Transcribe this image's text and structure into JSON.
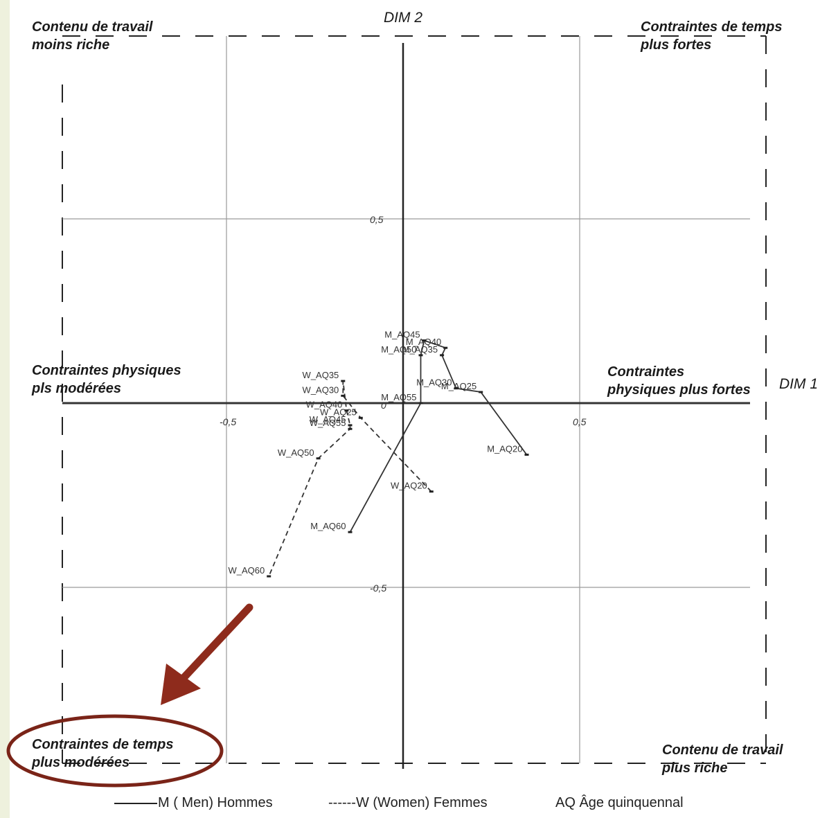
{
  "chart_data": {
    "type": "scatter",
    "xlabel": "DIM 1",
    "ylabel": "DIM 2",
    "xlim": [
      -0.95,
      0.95
    ],
    "ylim": [
      -0.98,
      1.0
    ],
    "x_ticks": [
      -0.5,
      0,
      0.5
    ],
    "y_ticks": [
      0.5,
      0,
      -0.5
    ],
    "x_tick_labels": [
      "-0,5",
      "0",
      "0,5"
    ],
    "y_tick_labels": [
      "0,5",
      "0",
      "-0,5"
    ],
    "grid": true,
    "series": [
      {
        "name": "M (Men) Hommes",
        "line_style": "solid",
        "points": [
          {
            "label": "M_AQ20",
            "x": 0.35,
            "y": -0.14
          },
          {
            "label": "M_AQ25",
            "x": 0.22,
            "y": 0.03
          },
          {
            "label": "M_AQ30",
            "x": 0.15,
            "y": 0.04
          },
          {
            "label": "M_AQ35",
            "x": 0.11,
            "y": 0.13
          },
          {
            "label": "M_AQ40",
            "x": 0.12,
            "y": 0.15
          },
          {
            "label": "M_AQ45",
            "x": 0.06,
            "y": 0.17
          },
          {
            "label": "M_AQ50",
            "x": 0.05,
            "y": 0.13
          },
          {
            "label": "M_AQ55",
            "x": 0.05,
            "y": 0.0
          },
          {
            "label": "M_AQ60",
            "x": -0.15,
            "y": -0.35
          }
        ]
      },
      {
        "name": "W (Women) Femmes",
        "line_style": "dashed",
        "points": [
          {
            "label": "W_AQ20",
            "x": 0.08,
            "y": -0.24
          },
          {
            "label": "W_AQ25",
            "x": -0.12,
            "y": -0.04
          },
          {
            "label": "W_AQ30",
            "x": -0.17,
            "y": 0.02
          },
          {
            "label": "W_AQ35",
            "x": -0.17,
            "y": 0.06
          },
          {
            "label": "W_AQ40",
            "x": -0.16,
            "y": -0.02
          },
          {
            "label": "W_AQ45",
            "x": -0.15,
            "y": -0.06
          },
          {
            "label": "W_AQ50",
            "x": -0.24,
            "y": -0.15
          },
          {
            "label": "W_AQ55",
            "x": -0.15,
            "y": -0.07
          },
          {
            "label": "W_AQ60",
            "x": -0.38,
            "y": -0.47
          }
        ]
      }
    ],
    "path_order": {
      "M (Men) Hommes": [
        "M_AQ20",
        "M_AQ25",
        "M_AQ30",
        "M_AQ35",
        "M_AQ40",
        "M_AQ45",
        "M_AQ50",
        "M_AQ55",
        "M_AQ60"
      ],
      "W (Women) Femmes": [
        "W_AQ20",
        "W_AQ25",
        "W_AQ30",
        "W_AQ35",
        "W_AQ40",
        "W_AQ45",
        "W_AQ55",
        "W_AQ50",
        "W_AQ60"
      ]
    },
    "annotations": {
      "top_left": [
        "Contenu de travail",
        "moins riche"
      ],
      "top_right": [
        "Contraintes de temps",
        "plus fortes"
      ],
      "left": [
        "Contraintes physiques",
        "pls modérées"
      ],
      "right": [
        "Contraintes",
        "physiques plus fortes"
      ],
      "bottom_left": [
        "Contraintes de temps",
        "plus modérées"
      ],
      "bottom_right": [
        "Contenu de travail",
        "plus riche"
      ]
    },
    "legend": {
      "items": [
        "M ( Men) Hommes",
        "------W (Women)  Femmes",
        "AQ  Âge quinquennal"
      ],
      "position": "bottom"
    },
    "highlight": {
      "target": "bottom_left",
      "arrow_color": "#8e2b1c",
      "ellipse_color": "#7a2418"
    }
  }
}
